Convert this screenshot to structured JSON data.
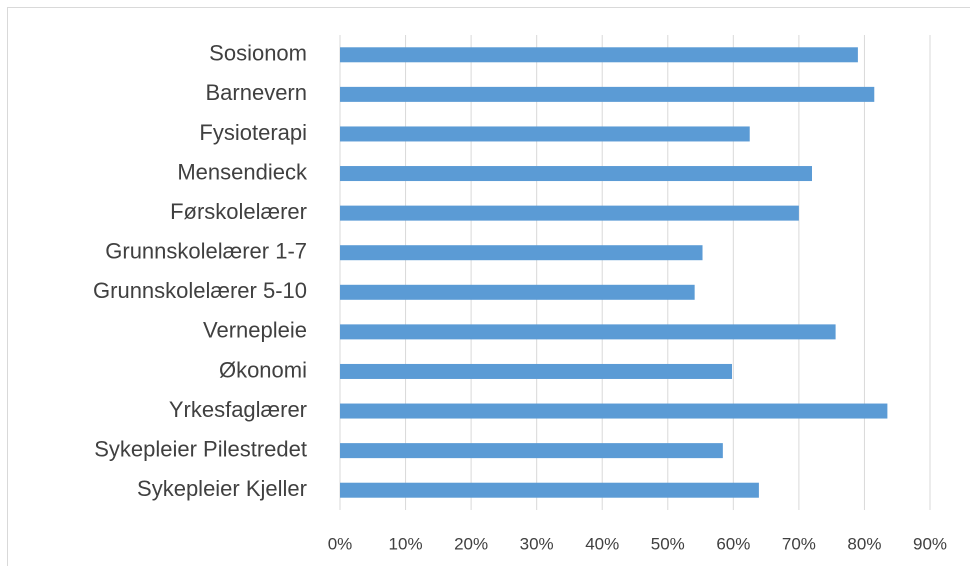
{
  "chart_data": {
    "type": "barh",
    "categories": [
      "Sosionom",
      "Barnevern",
      "Fysioterapi",
      "Mensendieck",
      "Førskolelærer",
      "Grunnskolelærer 1-7",
      "Grunnskolelærer 5-10",
      "Vernepleie",
      "Økonomi",
      "Yrkesfaglærer",
      "Sykepleier Pilestredet",
      "Sykepleier Kjeller"
    ],
    "values": [
      79,
      81.5,
      62.5,
      72,
      70,
      55.3,
      54.1,
      75.6,
      59.8,
      83.5,
      58.4,
      63.9
    ],
    "color": "#5b9bd5",
    "xlim": [
      0,
      90
    ],
    "xticks": [
      {
        "value": 0,
        "label": "0%"
      },
      {
        "value": 10,
        "label": "10%"
      },
      {
        "value": 20,
        "label": "20%"
      },
      {
        "value": 30,
        "label": "30%"
      },
      {
        "value": 40,
        "label": "40%"
      },
      {
        "value": 50,
        "label": "50%"
      },
      {
        "value": 60,
        "label": "60%"
      },
      {
        "value": 70,
        "label": "70%"
      },
      {
        "value": 80,
        "label": "80%"
      },
      {
        "value": 90,
        "label": "90%"
      }
    ],
    "grid": true
  }
}
